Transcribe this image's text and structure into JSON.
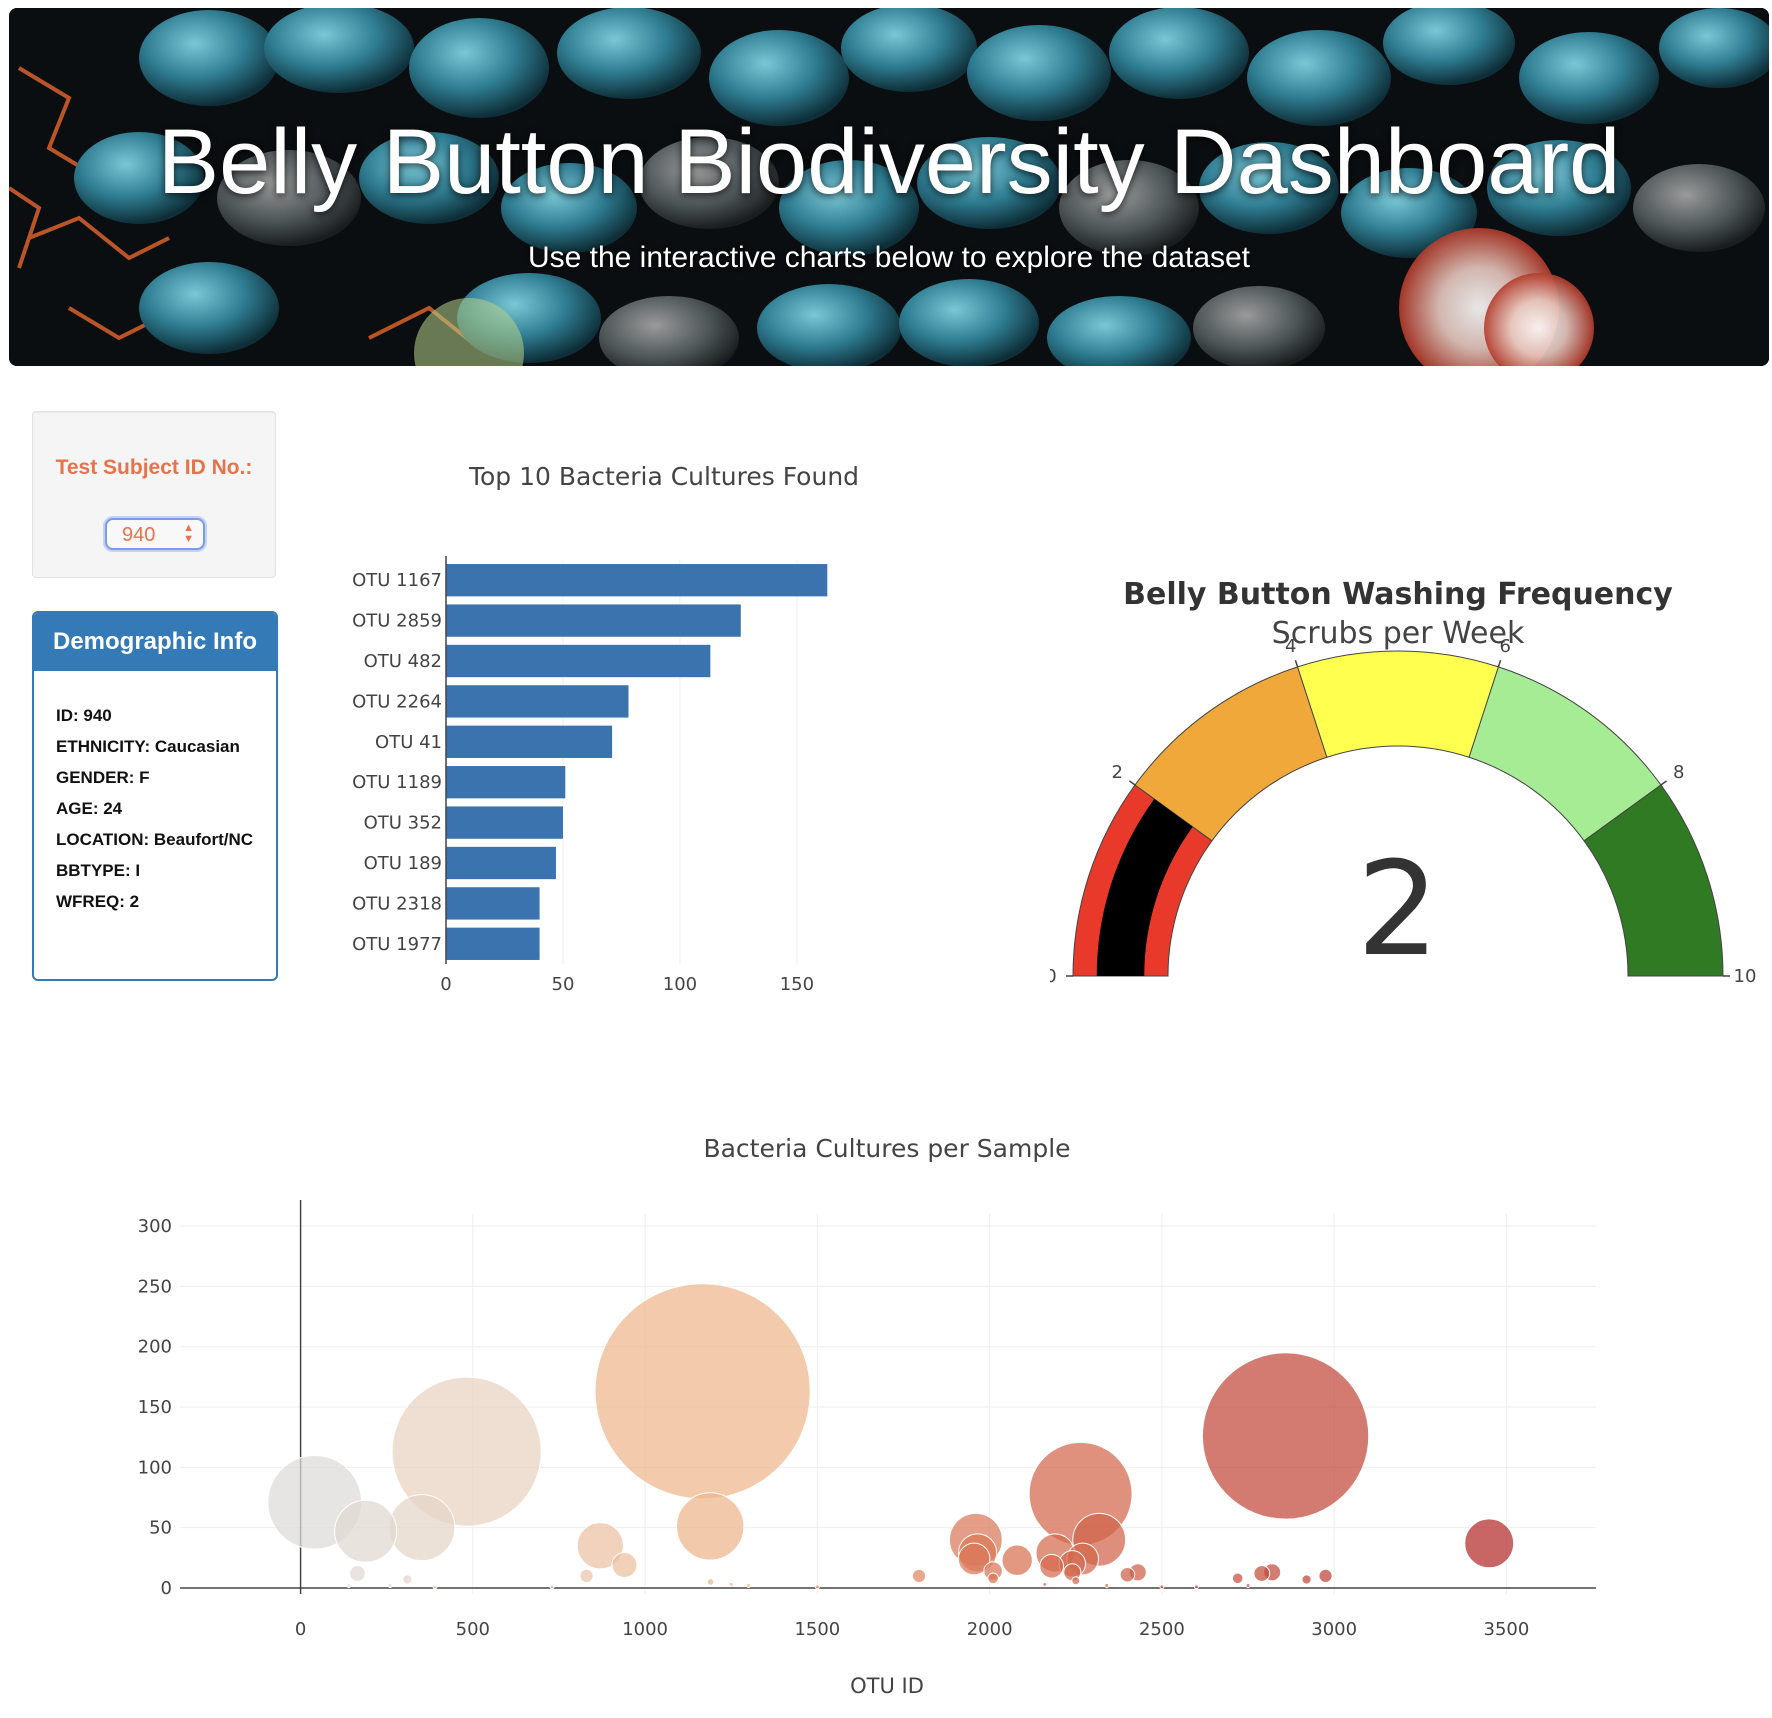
{
  "header": {
    "title": "Belly Button Biodiversity Dashboard",
    "subtitle": "Use the interactive charts below to explore the dataset"
  },
  "selector": {
    "label": "Test Subject ID No.:",
    "value": "940"
  },
  "demographics": {
    "heading": "Demographic Info",
    "items": [
      "ID: 940",
      "ETHNICITY: Caucasian",
      "GENDER: F",
      "AGE: 24",
      "LOCATION: Beaufort/NC",
      "BBTYPE: I",
      "WFREQ: 2"
    ]
  },
  "colors": {
    "bar": "#3a73ae",
    "panel": "#337ab7",
    "accent": "#e8734a"
  },
  "chart_data": [
    {
      "type": "bar",
      "orientation": "horizontal",
      "title": "Top 10 Bacteria Cultures Found",
      "categories": [
        "OTU 1167",
        "OTU 2859",
        "OTU 482",
        "OTU 2264",
        "OTU 41",
        "OTU 1189",
        "OTU 352",
        "OTU 189",
        "OTU 2318",
        "OTU 1977"
      ],
      "values": [
        163,
        126,
        113,
        78,
        71,
        51,
        50,
        47,
        40,
        40
      ],
      "xlim": [
        0,
        165
      ],
      "xticks": [
        0,
        50,
        100,
        150
      ],
      "grid": true
    },
    {
      "type": "gauge",
      "title": "Belly Button Washing Frequency",
      "subtitle": "Scrubs per Week",
      "value": 2,
      "range": [
        0,
        10
      ],
      "ticks": [
        0,
        2,
        4,
        6,
        8,
        10
      ],
      "steps": [
        {
          "range": [
            0,
            2
          ],
          "color": "#e8392a"
        },
        {
          "range": [
            2,
            4
          ],
          "color": "#f0a83a"
        },
        {
          "range": [
            4,
            6
          ],
          "color": "#ffff4f"
        },
        {
          "range": [
            6,
            8
          ],
          "color": "#a6ec94"
        },
        {
          "range": [
            8,
            10
          ],
          "color": "#2f7a22"
        }
      ],
      "bar_color": "#000000"
    },
    {
      "type": "scatter",
      "title": "Bacteria Cultures per Sample",
      "xlabel": "OTU ID",
      "xlim": [
        -350,
        3760
      ],
      "ylim": [
        -5,
        310
      ],
      "xticks": [
        0,
        500,
        1000,
        1500,
        2000,
        2500,
        3000,
        3500
      ],
      "yticks": [
        0,
        50,
        100,
        150,
        200,
        250,
        300
      ],
      "grid": true,
      "points": [
        {
          "x": 41,
          "y": 71
        },
        {
          "x": 189,
          "y": 47
        },
        {
          "x": 352,
          "y": 50
        },
        {
          "x": 482,
          "y": 113
        },
        {
          "x": 165,
          "y": 12
        },
        {
          "x": 310,
          "y": 7
        },
        {
          "x": 870,
          "y": 35
        },
        {
          "x": 940,
          "y": 19
        },
        {
          "x": 830,
          "y": 10
        },
        {
          "x": 1167,
          "y": 163
        },
        {
          "x": 1189,
          "y": 51
        },
        {
          "x": 1190,
          "y": 5
        },
        {
          "x": 1795,
          "y": 10
        },
        {
          "x": 1960,
          "y": 40
        },
        {
          "x": 1965,
          "y": 29
        },
        {
          "x": 1955,
          "y": 24
        },
        {
          "x": 2010,
          "y": 14
        },
        {
          "x": 2010,
          "y": 8
        },
        {
          "x": 2080,
          "y": 23
        },
        {
          "x": 2190,
          "y": 29
        },
        {
          "x": 2180,
          "y": 18
        },
        {
          "x": 2240,
          "y": 20
        },
        {
          "x": 2240,
          "y": 13
        },
        {
          "x": 2250,
          "y": 6
        },
        {
          "x": 2264,
          "y": 78
        },
        {
          "x": 2318,
          "y": 40
        },
        {
          "x": 2270,
          "y": 24
        },
        {
          "x": 2400,
          "y": 11
        },
        {
          "x": 2430,
          "y": 13
        },
        {
          "x": 2720,
          "y": 8
        },
        {
          "x": 2790,
          "y": 12
        },
        {
          "x": 2820,
          "y": 13
        },
        {
          "x": 2859,
          "y": 126
        },
        {
          "x": 2920,
          "y": 7
        },
        {
          "x": 2975,
          "y": 10
        },
        {
          "x": 3450,
          "y": 37
        },
        {
          "x": 140,
          "y": 2
        },
        {
          "x": 260,
          "y": 2
        },
        {
          "x": 390,
          "y": 1
        },
        {
          "x": 730,
          "y": 1
        },
        {
          "x": 1250,
          "y": 3
        },
        {
          "x": 1300,
          "y": 2
        },
        {
          "x": 1500,
          "y": 1
        },
        {
          "x": 2160,
          "y": 3
        },
        {
          "x": 2340,
          "y": 2
        },
        {
          "x": 2500,
          "y": 1
        },
        {
          "x": 2600,
          "y": 1
        },
        {
          "x": 2750,
          "y": 2
        }
      ]
    }
  ]
}
